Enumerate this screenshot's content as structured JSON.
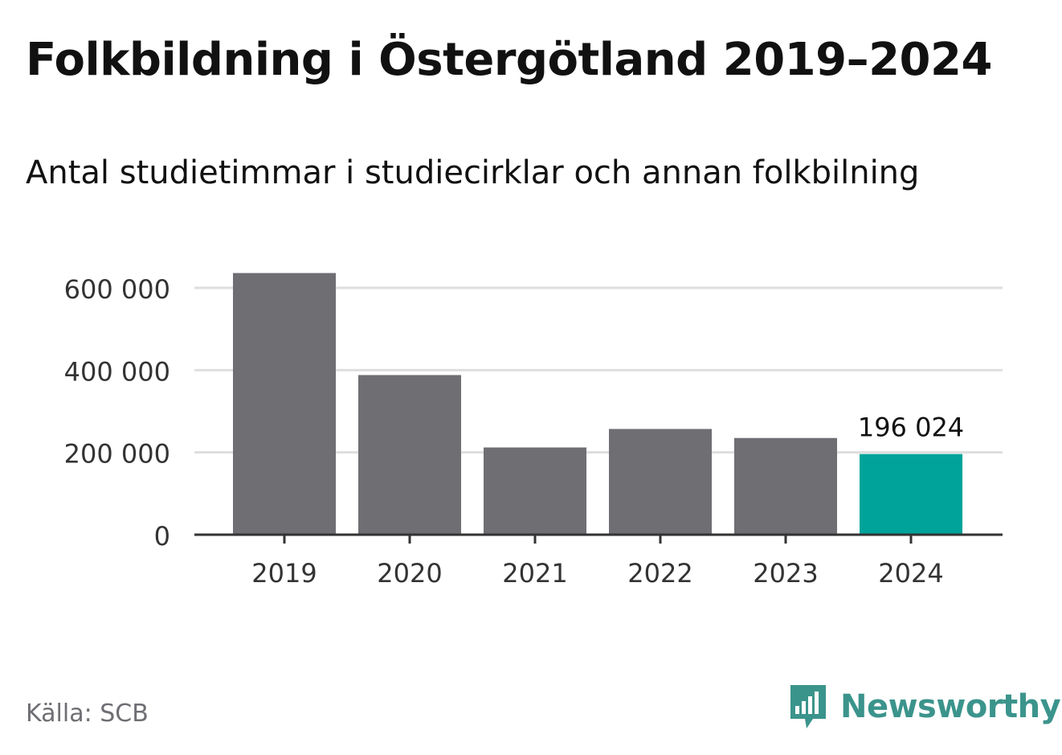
{
  "title": "Folkbildning i Östergötland 2019–2024",
  "subtitle": "Antal studietimmar i studiecirklar och annan folkbilning",
  "source": "Källa: SCB",
  "brand": {
    "name": "Newsworthy",
    "logo_icon": "bar-chart-speech-bubble-icon",
    "color": "#3b948c"
  },
  "chart_data": {
    "type": "bar",
    "categories": [
      "2019",
      "2020",
      "2021",
      "2022",
      "2023",
      "2024"
    ],
    "values": [
      636000,
      388000,
      212000,
      257000,
      235000,
      196024
    ],
    "ylim": [
      0,
      600000
    ],
    "yticks": [
      0,
      200000,
      400000,
      600000
    ],
    "ytick_labels": [
      "0",
      "200 000",
      "400 000",
      "600 000"
    ],
    "grid": true,
    "bar_color": "#6f6e73",
    "highlight_color": "#00a39a",
    "highlight_index": 5,
    "annotation": "196 024"
  }
}
